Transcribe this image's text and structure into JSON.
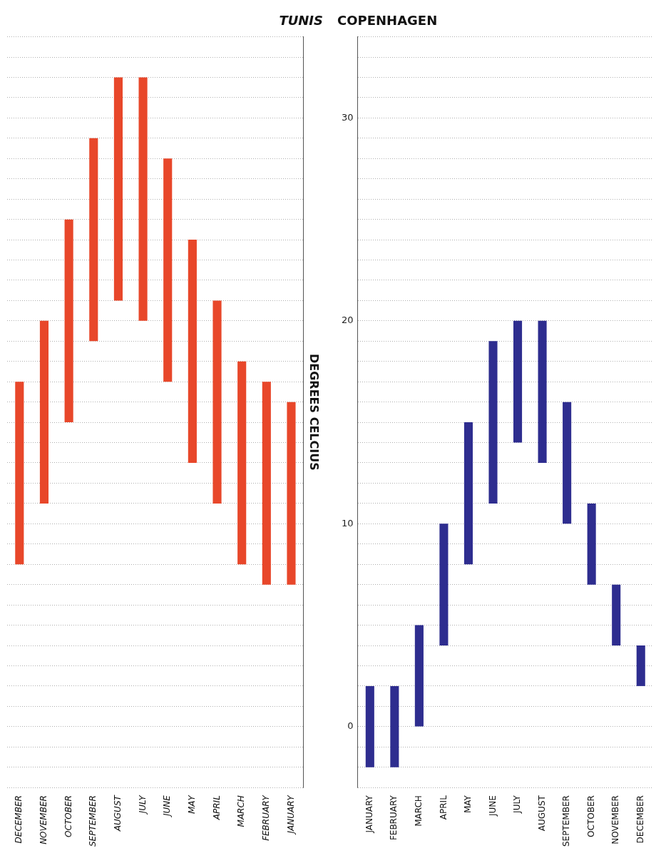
{
  "chart_data": [
    {
      "type": "bar",
      "title": "TUNIS",
      "ylabel": "DEGREES CELCIUS",
      "categories": [
        "DECEMBER",
        "NOVEMBER",
        "OCTOBER",
        "SEPTEMBER",
        "AUGUST",
        "JULY",
        "JUNE",
        "MAY",
        "APRIL",
        "MARCH",
        "FEBRUARY",
        "JANUARY"
      ],
      "base": [
        8,
        11,
        15,
        19,
        21,
        20,
        17,
        13,
        11,
        8,
        7,
        7
      ],
      "values": [
        9,
        9,
        10,
        10,
        11,
        12,
        11,
        11,
        10,
        10,
        10,
        9
      ],
      "color": "#e8472a",
      "ylim": [
        -3,
        34
      ],
      "yticks": [
        {
          "value": -3,
          "label": null
        },
        {
          "value": -2,
          "label": null
        },
        {
          "value": -1,
          "label": null
        },
        0,
        {
          "value": 1,
          "label": null
        },
        {
          "value": 2,
          "label": null
        },
        {
          "value": 3,
          "label": null
        },
        {
          "value": 4,
          "label": null
        },
        {
          "value": 5,
          "label": null
        },
        {
          "value": 6,
          "label": null
        },
        {
          "value": 7,
          "label": null
        },
        {
          "value": 8,
          "label": null
        },
        {
          "value": 9,
          "label": null
        },
        10,
        {
          "value": 11,
          "label": null
        },
        {
          "value": 12,
          "label": null
        },
        {
          "value": 13,
          "label": null
        },
        {
          "value": 14,
          "label": null
        },
        {
          "value": 15,
          "label": null
        },
        {
          "value": 16,
          "label": null
        },
        {
          "value": 17,
          "label": null
        },
        {
          "value": 18,
          "label": null
        },
        {
          "value": 19,
          "label": null
        },
        20,
        {
          "value": 21,
          "label": null
        },
        {
          "value": 22,
          "label": null
        },
        {
          "value": 23,
          "label": null
        },
        {
          "value": 24,
          "label": null
        },
        {
          "value": 25,
          "label": null
        },
        {
          "value": 26,
          "label": null
        },
        {
          "value": 27,
          "label": null
        },
        {
          "value": 28,
          "label": null
        },
        {
          "value": 29,
          "label": null
        },
        30,
        {
          "value": 31,
          "label": null
        },
        {
          "value": 32,
          "label": null
        },
        {
          "value": 33,
          "label": null
        },
        {
          "value": 34,
          "label": null
        }
      ],
      "grid": "y",
      "tick_labels": "x"
    },
    {
      "type": "bar",
      "title": "COPENHAGEN",
      "categories": [
        "JANUARY",
        "FEBRUARY",
        "MARCH",
        "APRIL",
        "MAY",
        "JUNE",
        "JULY",
        "AUGUST",
        "SEPTEMBER",
        "OCTOBER",
        "NOVEMBER",
        "DECEMBER"
      ],
      "base": [
        -2,
        -2,
        0,
        4,
        8,
        11,
        14,
        13,
        10,
        7,
        4,
        2
      ],
      "values": [
        4,
        4,
        5,
        6,
        7,
        8,
        6,
        7,
        6,
        4,
        3,
        2
      ],
      "color": "#2e2d8f",
      "ylim": [
        -3,
        34
      ],
      "yticks": [
        {
          "value": -3,
          "label": null
        },
        {
          "value": -2,
          "label": null
        },
        {
          "value": -1,
          "label": null
        },
        0,
        {
          "value": 1,
          "label": null
        },
        {
          "value": 2,
          "label": null
        },
        {
          "value": 3,
          "label": null
        },
        {
          "value": 4,
          "label": null
        },
        {
          "value": 5,
          "label": null
        },
        {
          "value": 6,
          "label": null
        },
        {
          "value": 7,
          "label": null
        },
        {
          "value": 8,
          "label": null
        },
        {
          "value": 9,
          "label": null
        },
        10,
        {
          "value": 11,
          "label": null
        },
        {
          "value": 12,
          "label": null
        },
        {
          "value": 13,
          "label": null
        },
        {
          "value": 14,
          "label": null
        },
        {
          "value": 15,
          "label": null
        },
        {
          "value": 16,
          "label": null
        },
        {
          "value": 17,
          "label": null
        },
        {
          "value": 18,
          "label": null
        },
        {
          "value": 19,
          "label": null
        },
        20,
        {
          "value": 21,
          "label": null
        },
        {
          "value": 22,
          "label": null
        },
        {
          "value": 23,
          "label": null
        },
        {
          "value": 24,
          "label": null
        },
        {
          "value": 25,
          "label": null
        },
        {
          "value": 26,
          "label": null
        },
        {
          "value": 27,
          "label": null
        },
        {
          "value": 28,
          "label": null
        },
        {
          "value": 29,
          "label": null
        },
        30,
        {
          "value": 31,
          "label": null
        },
        {
          "value": 32,
          "label": null
        },
        {
          "value": 33,
          "label": null
        },
        {
          "value": 34,
          "label": null
        }
      ],
      "grid": "y"
    }
  ]
}
